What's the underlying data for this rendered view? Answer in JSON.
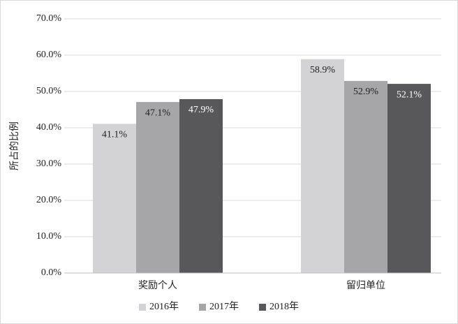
{
  "chart_data": {
    "type": "bar",
    "y_label": "所占的比例",
    "categories": [
      "奖励个人",
      "留归单位"
    ],
    "series": [
      {
        "name": "2016年",
        "color": "#d3d3d5",
        "values": [
          41.1,
          58.9
        ],
        "value_labels": [
          "41.1%",
          "58.9%"
        ]
      },
      {
        "name": "2017年",
        "color": "#a6a6a8",
        "values": [
          47.1,
          52.9
        ],
        "value_labels": [
          "47.1%",
          "52.9%"
        ]
      },
      {
        "name": "2018年",
        "color": "#58585a",
        "values": [
          47.9,
          52.1
        ],
        "value_labels": [
          "47.9%",
          "52.1%"
        ]
      }
    ],
    "ylim": [
      0,
      70
    ],
    "yticks": [
      {
        "value": 0,
        "label": "0.0%"
      },
      {
        "value": 10,
        "label": "10.0%"
      },
      {
        "value": 20,
        "label": "20.0%"
      },
      {
        "value": 30,
        "label": "30.0%"
      },
      {
        "value": 40,
        "label": "40.0%"
      },
      {
        "value": 50,
        "label": "50.0%"
      },
      {
        "value": 60,
        "label": "60.0%"
      },
      {
        "value": 70,
        "label": "70.0%"
      }
    ],
    "grid": true,
    "legend": "bottom"
  }
}
